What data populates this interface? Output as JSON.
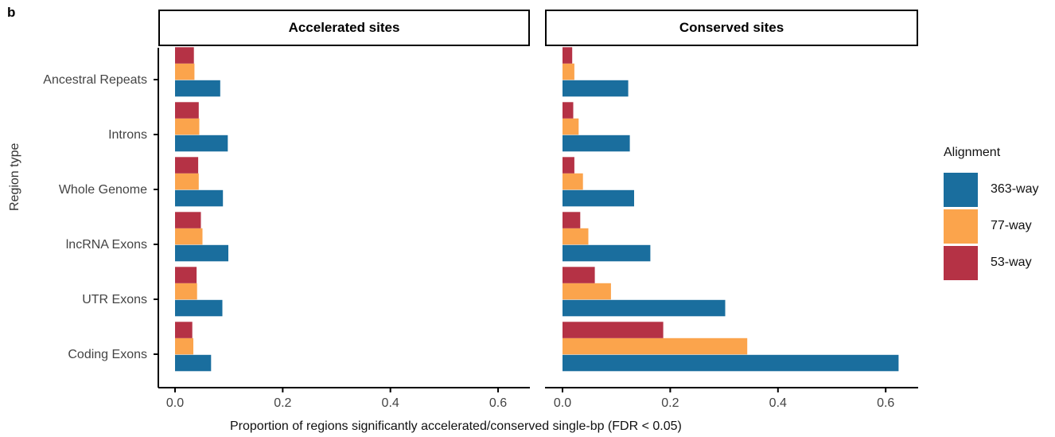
{
  "panel_label": "b",
  "colors": {
    "363-way": "#1a6e9e",
    "77-way": "#fba44c",
    "53-way": "#b53245"
  },
  "legend": {
    "title": "Alignment",
    "items": [
      {
        "label": "363-way",
        "color": "#1a6e9e"
      },
      {
        "label": "77-way",
        "color": "#fba44c"
      },
      {
        "label": "53-way",
        "color": "#b53245"
      }
    ]
  },
  "chart_data": {
    "type": "bar",
    "orientation": "horizontal",
    "ylabel": "Region type",
    "xlabel": "Proportion of regions significantly accelerated/conserved single-bp (FDR < 0.05)",
    "categories": [
      "Ancestral Repeats",
      "Introns",
      "Whole Genome",
      "lncRNA Exons",
      "UTR Exons",
      "Coding Exons"
    ],
    "xlim": [
      -0.03,
      0.65
    ],
    "xticks": [
      "0.0",
      "0.2",
      "0.4",
      "0.6"
    ],
    "panels": [
      {
        "title": "Accelerated sites",
        "series": [
          {
            "name": "363-way",
            "values": [
              0.084,
              0.098,
              0.089,
              0.099,
              0.088,
              0.067
            ]
          },
          {
            "name": "77-way",
            "values": [
              0.036,
              0.045,
              0.044,
              0.051,
              0.041,
              0.034
            ]
          },
          {
            "name": "53-way",
            "values": [
              0.035,
              0.044,
              0.043,
              0.048,
              0.04,
              0.032
            ]
          }
        ]
      },
      {
        "title": "Conserved sites",
        "series": [
          {
            "name": "363-way",
            "values": [
              0.122,
              0.125,
              0.133,
              0.163,
              0.302,
              0.624
            ]
          },
          {
            "name": "77-way",
            "values": [
              0.022,
              0.03,
              0.038,
              0.048,
              0.09,
              0.343
            ]
          },
          {
            "name": "53-way",
            "values": [
              0.018,
              0.02,
              0.022,
              0.033,
              0.06,
              0.187
            ]
          }
        ]
      }
    ]
  }
}
